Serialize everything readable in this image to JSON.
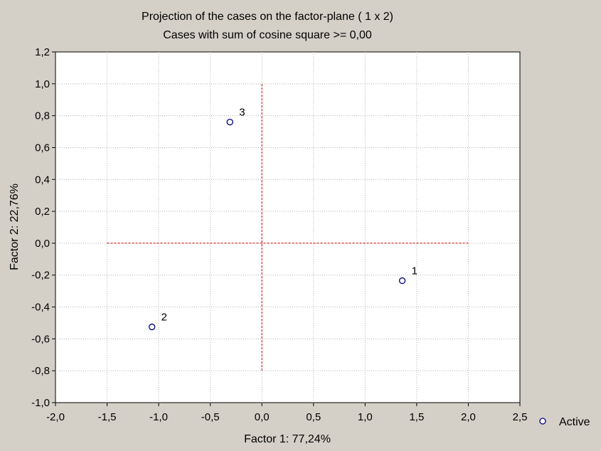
{
  "chart_data": {
    "type": "scatter",
    "title": "Projection of the cases on the factor-plane (  1 x   2)",
    "subtitle": "Cases with sum of cosine square >=  0,00",
    "xlabel": "Factor 1: 77,24%",
    "ylabel": "Factor 2: 22,76%",
    "xlim": [
      -2.0,
      2.5
    ],
    "ylim": [
      -1.0,
      1.2
    ],
    "x_ticks": [
      "-2,0",
      "-1,5",
      "-1,0",
      "-0,5",
      "0,0",
      "0,5",
      "1,0",
      "1,5",
      "2,0",
      "2,5"
    ],
    "y_ticks": [
      "1,2",
      "1,0",
      "0,8",
      "0,6",
      "0,4",
      "0,2",
      "0,0",
      "-0,2",
      "-0,4",
      "-0,6",
      "-0,8",
      "-1,0"
    ],
    "grid": true,
    "legend_position": "bottom-right",
    "series": [
      {
        "name": "Active",
        "marker": "open-circle",
        "points": [
          {
            "label": "1",
            "x": 1.36,
            "y": -0.235
          },
          {
            "label": "2",
            "x": -1.065,
            "y": -0.525
          },
          {
            "label": "3",
            "x": -0.31,
            "y": 0.76
          }
        ]
      }
    ],
    "reference_lines": [
      {
        "orientation": "horizontal",
        "y": 0.0,
        "from": -1.5,
        "to": 2.0,
        "color": "#cc0000",
        "style": "dashed"
      },
      {
        "orientation": "vertical",
        "x": 0.0,
        "from": -0.8,
        "to": 1.0,
        "color": "#cc0000",
        "style": "dashed"
      }
    ],
    "colors": {
      "background": "#d4d0c8",
      "plot_area": "#ffffff",
      "marker": "#000080",
      "grid": "#b4b4b4"
    }
  }
}
